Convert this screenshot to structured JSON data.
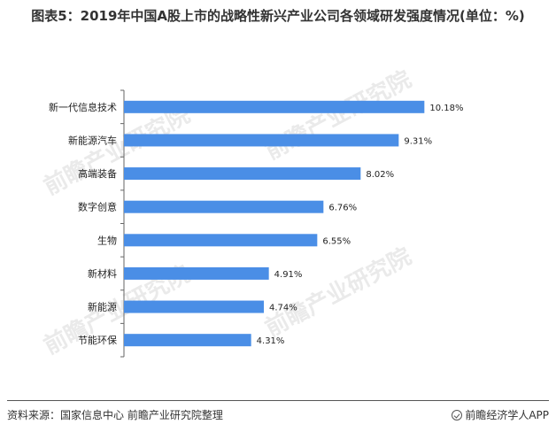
{
  "title": "图表5：2019年中国A股上市的战略性新兴产业公司各领域研发强度情况(单位：%)",
  "footer": {
    "source": "资料来源：国家信息中心 前瞻产业研究院整理",
    "brand": "前瞻经济学人APP"
  },
  "watermark": "前瞻产业研究院",
  "colors": {
    "bar": "#4a8ee6"
  },
  "chart_data": {
    "type": "bar",
    "orientation": "horizontal",
    "categories": [
      "新一代信息技术",
      "新能源汽车",
      "高端装备",
      "数字创意",
      "生物",
      "新材料",
      "新能源",
      "节能环保"
    ],
    "values": [
      10.18,
      9.31,
      8.02,
      6.76,
      6.55,
      4.91,
      4.74,
      4.31
    ],
    "value_labels": [
      "10.18%",
      "9.31%",
      "8.02%",
      "6.76%",
      "6.55%",
      "4.91%",
      "4.74%",
      "4.31%"
    ],
    "xlim": [
      0,
      12
    ],
    "grid": false,
    "legend": "none"
  }
}
